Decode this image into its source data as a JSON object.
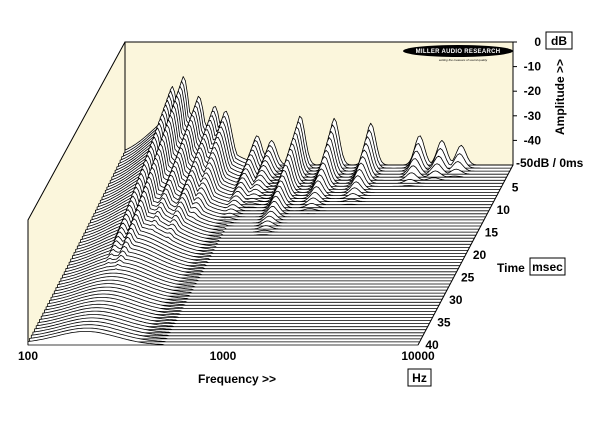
{
  "chart_data": {
    "type": "waterfall",
    "title": "",
    "xlabel": "Frequency >>",
    "x_unit": "Hz",
    "ylabel": "Amplitude >>",
    "y_unit": "dB",
    "zlabel": "Time",
    "z_unit": "msec",
    "x_scale": "log",
    "x_ticks": [
      100,
      1000,
      10000
    ],
    "x_tick_labels": [
      "100",
      "1000",
      "10000"
    ],
    "xlim": [
      100,
      10000
    ],
    "y_ticks": [
      0,
      -10,
      -20,
      -30,
      -40
    ],
    "y_tick_labels": [
      "0",
      "-10",
      "-20",
      "-30",
      "-40"
    ],
    "y_floor_label": "-50dB / 0ms",
    "ylim": [
      -50,
      0
    ],
    "z_ticks": [
      5,
      10,
      15,
      20,
      25,
      30,
      35,
      40
    ],
    "z_tick_labels": [
      "5",
      "10",
      "15",
      "20",
      "25",
      "30",
      "35",
      "40"
    ],
    "zlim": [
      0,
      40
    ],
    "slice_count": 60,
    "resonances": [
      {
        "freq_hz": 175,
        "peak_db": -18,
        "decay_ms": 40
      },
      {
        "freq_hz": 200,
        "peak_db": -14,
        "decay_ms": 40
      },
      {
        "freq_hz": 240,
        "peak_db": -22,
        "decay_ms": 34
      },
      {
        "freq_hz": 290,
        "peak_db": -26,
        "decay_ms": 30
      },
      {
        "freq_hz": 330,
        "peak_db": -28,
        "decay_ms": 20
      },
      {
        "freq_hz": 480,
        "peak_db": -38,
        "decay_ms": 14
      },
      {
        "freq_hz": 570,
        "peak_db": -40,
        "decay_ms": 10
      },
      {
        "freq_hz": 800,
        "peak_db": -30,
        "decay_ms": 16
      },
      {
        "freq_hz": 1200,
        "peak_db": -31,
        "decay_ms": 11
      },
      {
        "freq_hz": 1850,
        "peak_db": -33,
        "decay_ms": 9
      },
      {
        "freq_hz": 3300,
        "peak_db": -38,
        "decay_ms": 5
      },
      {
        "freq_hz": 4300,
        "peak_db": -40,
        "decay_ms": 4
      },
      {
        "freq_hz": 5400,
        "peak_db": -42,
        "decay_ms": 3
      }
    ],
    "background_color": "#fbf6dc",
    "line_color": "#000000"
  },
  "logo": {
    "text": "MILLER AUDIO RESEARCH",
    "tagline": "setting the measure of sound quality"
  }
}
